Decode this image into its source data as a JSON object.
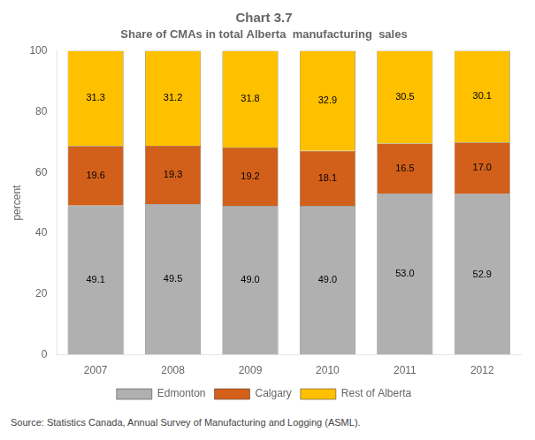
{
  "chart_data": {
    "type": "bar",
    "title": "Chart 3.7",
    "subtitle": "Share of CMAs in total Alberta  manufacturing  sales",
    "ylabel": "percent",
    "categories": [
      "2007",
      "2008",
      "2009",
      "2010",
      "2011",
      "2012"
    ],
    "series": [
      {
        "name": "Edmonton",
        "color": "#B0B0B0",
        "values": [
          49.1,
          49.5,
          49.0,
          49.0,
          53.0,
          52.9
        ],
        "value_labels": [
          "49.1",
          "49.5",
          "49.0",
          "49.0",
          "53.0",
          "52.9"
        ]
      },
      {
        "name": "Calgary",
        "color": "#D2601A",
        "values": [
          19.6,
          19.3,
          19.2,
          18.1,
          16.5,
          17.0
        ],
        "value_labels": [
          "19.6",
          "19.3",
          "19.2",
          "18.1",
          "16.5",
          "17.0"
        ]
      },
      {
        "name": "Rest of Alberta",
        "color": "#FFC000",
        "values": [
          31.3,
          31.2,
          31.8,
          32.9,
          30.5,
          30.1
        ],
        "value_labels": [
          "31.3",
          "31.2",
          "31.8",
          "32.9",
          "30.5",
          "30.1"
        ]
      }
    ],
    "stacked": true,
    "data_labels": true,
    "ylim": [
      0,
      100
    ],
    "yticks": [
      0,
      20,
      40,
      60,
      80,
      100
    ],
    "grid": false,
    "legend": "bottom",
    "annotations": [
      "Source: Statistics Canada, Annual Survey of Manufacturing and Logging (ASML)."
    ]
  }
}
